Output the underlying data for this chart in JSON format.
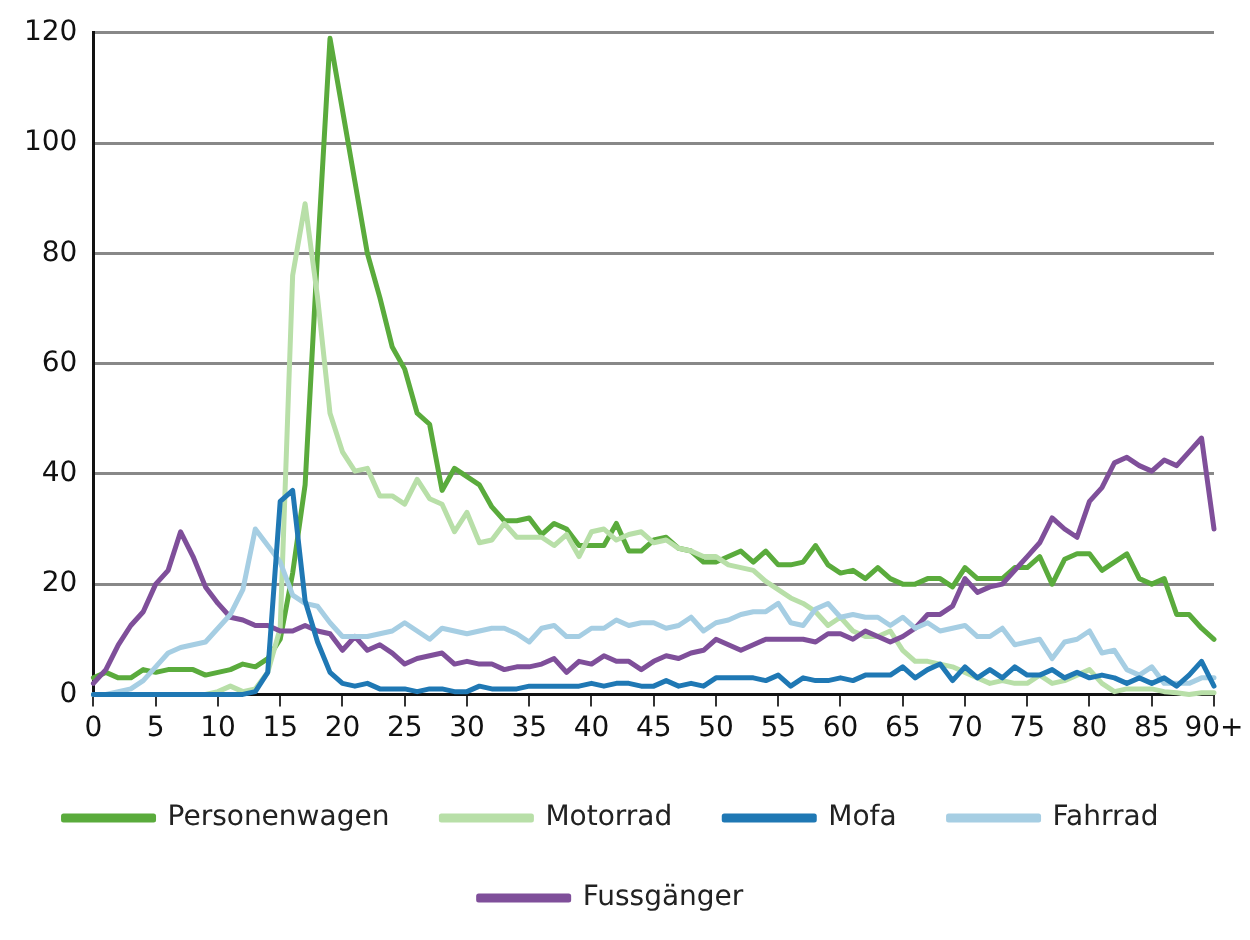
{
  "chart_data": {
    "type": "line",
    "categories": [
      "0",
      null,
      null,
      null,
      null,
      "5",
      null,
      null,
      null,
      null,
      "10",
      null,
      null,
      null,
      null,
      "15",
      null,
      null,
      null,
      null,
      "20",
      null,
      null,
      null,
      null,
      "25",
      null,
      null,
      null,
      null,
      "30",
      null,
      null,
      null,
      null,
      "35",
      null,
      null,
      null,
      null,
      "40",
      null,
      null,
      null,
      null,
      "45",
      null,
      null,
      null,
      null,
      "50",
      null,
      null,
      null,
      null,
      "55",
      null,
      null,
      null,
      null,
      "60",
      null,
      null,
      null,
      null,
      "65",
      null,
      null,
      null,
      null,
      "70",
      null,
      null,
      null,
      null,
      "75",
      null,
      null,
      null,
      null,
      "80",
      null,
      null,
      null,
      null,
      "85",
      null,
      null,
      null,
      null,
      "90+"
    ],
    "ylim": [
      0,
      120
    ],
    "yticks": [
      0,
      20,
      40,
      60,
      80,
      100,
      120
    ],
    "grid": "y",
    "legend": "bottom",
    "marker": "none",
    "line_style": "solid",
    "series": [
      {
        "name": "Personenwagen",
        "color": "#5aab3c",
        "values": [
          3,
          4,
          3,
          3,
          4.5,
          4,
          4.5,
          4.5,
          4.5,
          3.5,
          4,
          4.5,
          5.5,
          5,
          6.5,
          10,
          22,
          38,
          80,
          119,
          106,
          93,
          80,
          72,
          63,
          59,
          51,
          49,
          37,
          41,
          39.5,
          38,
          34,
          31.5,
          31.5,
          32,
          29,
          31,
          30,
          27,
          27,
          27,
          31,
          26,
          26,
          28,
          28.5,
          26.5,
          26,
          24,
          24,
          25,
          26,
          24,
          26,
          23.5,
          23.5,
          24,
          27,
          23.5,
          22,
          22.5,
          21,
          23,
          21,
          20,
          20,
          21,
          21,
          19.5,
          23,
          21,
          21,
          21,
          23,
          23,
          25,
          20,
          24.5,
          25.5,
          25.5,
          22.5,
          24,
          25.5,
          21,
          20,
          21,
          14.5,
          14.5,
          12,
          10
        ]
      },
      {
        "name": "Motorrad",
        "color": "#b8dfa8",
        "values": [
          0,
          0,
          0,
          0,
          0,
          0,
          0,
          0,
          0,
          0,
          0.5,
          1.5,
          0.5,
          1,
          4,
          12,
          76,
          89,
          72,
          51,
          44,
          40.5,
          41,
          36,
          36,
          34.5,
          39,
          35.5,
          34.5,
          29.5,
          33,
          27.5,
          28,
          31,
          28.5,
          28.5,
          28.5,
          27,
          29,
          25,
          29.5,
          30,
          28,
          29,
          29.5,
          27.5,
          28,
          26.5,
          26,
          25,
          25,
          23.5,
          23,
          22.5,
          20.5,
          19,
          17.5,
          16.5,
          15,
          12.5,
          14,
          11.5,
          10.5,
          10.5,
          11.5,
          8,
          6,
          6,
          5.5,
          5,
          4,
          3,
          2,
          2.5,
          2,
          2,
          3.5,
          2,
          2.5,
          3.5,
          4.5,
          2,
          0.5,
          1,
          1,
          1,
          0.5,
          0.3,
          0,
          0.3,
          0.3
        ]
      },
      {
        "name": "Mofa",
        "color": "#1f78b4",
        "values": [
          0,
          0,
          0,
          0,
          0,
          0,
          0,
          0,
          0,
          0,
          0,
          0,
          0,
          0.5,
          4,
          35,
          37,
          17,
          9.5,
          4,
          2,
          1.5,
          2,
          1,
          1,
          1,
          0.5,
          1,
          1,
          0.5,
          0.5,
          1.5,
          1,
          1,
          1,
          1.5,
          1.5,
          1.5,
          1.5,
          1.5,
          2,
          1.5,
          2,
          2,
          1.5,
          1.5,
          2.5,
          1.5,
          2,
          1.5,
          3,
          3,
          3,
          3,
          2.5,
          3.5,
          1.5,
          3,
          2.5,
          2.5,
          3,
          2.5,
          3.5,
          3.5,
          3.5,
          5,
          3,
          4.5,
          5.5,
          2.5,
          5,
          3,
          4.5,
          3,
          5,
          3.5,
          3.5,
          4.5,
          3,
          4,
          3,
          3.5,
          3,
          2,
          3,
          2,
          3,
          1.5,
          3.5,
          6,
          1.5
        ]
      },
      {
        "name": "Fahrrad",
        "color": "#a6cee3",
        "values": [
          0,
          0,
          0.5,
          1,
          2.5,
          5,
          7.5,
          8.5,
          9,
          9.5,
          12,
          14.5,
          19,
          30,
          27,
          24,
          18,
          16.5,
          16,
          13,
          10.5,
          10.5,
          10.5,
          11,
          11.5,
          13,
          11.5,
          10,
          12,
          11.5,
          11,
          11.5,
          12,
          12,
          11,
          9.5,
          12,
          12.5,
          10.5,
          10.5,
          12,
          12,
          13.5,
          12.5,
          13,
          13,
          12,
          12.5,
          14,
          11.5,
          13,
          13.5,
          14.5,
          15,
          15,
          16.5,
          13,
          12.5,
          15.5,
          16.5,
          14,
          14.5,
          14,
          14,
          12.5,
          14,
          12,
          13,
          11.5,
          12,
          12.5,
          10.5,
          10.5,
          12,
          9,
          9.5,
          10,
          6.5,
          9.5,
          10,
          11.5,
          7.5,
          8,
          4.5,
          3.5,
          5,
          2,
          2,
          2,
          3,
          3
        ]
      },
      {
        "name": "Fussgänger",
        "color": "#7f4f9a",
        "values": [
          2,
          4.5,
          9,
          12.5,
          15,
          20,
          22.5,
          29.5,
          25,
          19.5,
          16.5,
          14,
          13.5,
          12.5,
          12.5,
          11.5,
          11.5,
          12.5,
          11.5,
          11,
          8,
          10.5,
          8,
          9,
          7.5,
          5.5,
          6.5,
          7,
          7.5,
          5.5,
          6,
          5.5,
          5.5,
          4.5,
          5,
          5,
          5.5,
          6.5,
          4,
          6,
          5.5,
          7,
          6,
          6,
          4.5,
          6,
          7,
          6.5,
          7.5,
          8,
          10,
          9,
          8,
          9,
          10,
          10,
          10,
          10,
          9.5,
          11,
          11,
          10,
          11.5,
          10.5,
          9.5,
          10.5,
          12,
          14.5,
          14.5,
          16,
          21,
          18.5,
          19.5,
          20,
          22.5,
          25,
          27.5,
          32,
          30,
          28.5,
          35,
          37.5,
          42,
          43,
          41.5,
          40.5,
          42.5,
          41.5,
          44,
          46.5,
          30
        ]
      }
    ]
  }
}
